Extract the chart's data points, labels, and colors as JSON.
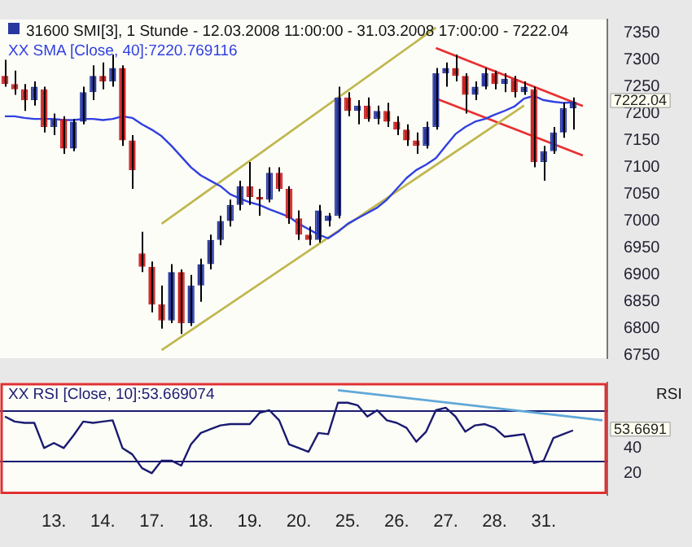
{
  "chart_data": [
    {
      "type": "candlestick",
      "title": "31600  SMI[3], 1 Stunde - 12.03.2008 11:00:00 - 31.03.2008 17:00:00 - 7222.04",
      "categories": [
        null,
        null,
        null,
        null,
        null,
        null,
        null,
        null,
        null,
        null,
        null,
        null,
        null,
        null,
        null,
        null,
        null,
        null,
        null,
        null,
        null,
        null,
        null,
        null,
        null,
        null,
        null,
        null,
        null,
        null,
        null,
        null,
        null,
        null,
        null,
        null,
        null,
        null,
        null,
        null,
        null,
        null,
        null,
        null,
        null,
        null,
        null,
        null,
        null,
        null,
        null,
        null,
        null,
        null,
        null,
        null,
        null,
        null,
        null,
        null,
        null,
        null
      ],
      "ohlc": [
        [
          7270,
          7300,
          7250,
          7255
        ],
        [
          7255,
          7280,
          7235,
          7245
        ],
        [
          7245,
          7255,
          7205,
          7225
        ],
        [
          7225,
          7260,
          7215,
          7250
        ],
        [
          7245,
          7250,
          7165,
          7175
        ],
        [
          7175,
          7200,
          7160,
          7190
        ],
        [
          7190,
          7195,
          7125,
          7135
        ],
        [
          7135,
          7190,
          7130,
          7185
        ],
        [
          7185,
          7250,
          7180,
          7240
        ],
        [
          7240,
          7290,
          7225,
          7270
        ],
        [
          7270,
          7295,
          7245,
          7260
        ],
        [
          7260,
          7310,
          7250,
          7285
        ],
        [
          7285,
          7290,
          7140,
          7150
        ],
        [
          7150,
          7160,
          7060,
          7095
        ],
        [
          6940,
          6980,
          6905,
          6915
        ],
        [
          6915,
          6925,
          6830,
          6845
        ],
        [
          6845,
          6880,
          6800,
          6815
        ],
        [
          6815,
          6920,
          6810,
          6905
        ],
        [
          6905,
          6910,
          6790,
          6810
        ],
        [
          6810,
          6900,
          6805,
          6880
        ],
        [
          6880,
          6930,
          6850,
          6920
        ],
        [
          6920,
          6975,
          6910,
          6965
        ],
        [
          6965,
          7010,
          6955,
          7000
        ],
        [
          7000,
          7040,
          6990,
          7030
        ],
        [
          7030,
          7075,
          7020,
          7065
        ],
        [
          7065,
          7110,
          7030,
          7045
        ],
        [
          7045,
          7060,
          7010,
          7040
        ],
        [
          7040,
          7100,
          7035,
          7090
        ],
        [
          7090,
          7100,
          7055,
          7060
        ],
        [
          7060,
          7065,
          6995,
          7005
        ],
        [
          7005,
          7020,
          6965,
          6975
        ],
        [
          6975,
          6990,
          6955,
          6965
        ],
        [
          6965,
          7030,
          6960,
          7020
        ],
        [
          7000,
          7015,
          6990,
          7010
        ],
        [
          7010,
          7250,
          7005,
          7230
        ],
        [
          7230,
          7240,
          7195,
          7205
        ],
        [
          7205,
          7225,
          7180,
          7215
        ],
        [
          7215,
          7230,
          7185,
          7190
        ],
        [
          7190,
          7215,
          7180,
          7205
        ],
        [
          7205,
          7220,
          7175,
          7185
        ],
        [
          7185,
          7195,
          7160,
          7170
        ],
        [
          7170,
          7180,
          7140,
          7150
        ],
        [
          7150,
          7165,
          7125,
          7140
        ],
        [
          7140,
          7185,
          7135,
          7175
        ],
        [
          7175,
          7285,
          7170,
          7275
        ],
        [
          7275,
          7295,
          7250,
          7285
        ],
        [
          7285,
          7310,
          7260,
          7270
        ],
        [
          7270,
          7275,
          7200,
          7235
        ],
        [
          7235,
          7260,
          7225,
          7250
        ],
        [
          7250,
          7285,
          7245,
          7275
        ],
        [
          7275,
          7280,
          7245,
          7255
        ],
        [
          7255,
          7275,
          7240,
          7265
        ],
        [
          7265,
          7270,
          7230,
          7240
        ],
        [
          7240,
          7260,
          7235,
          7250
        ],
        [
          7245,
          7250,
          7100,
          7110
        ],
        [
          7110,
          7140,
          7075,
          7130
        ],
        [
          7130,
          7175,
          7125,
          7165
        ],
        [
          7165,
          7220,
          7155,
          7210
        ],
        [
          7210,
          7230,
          7170,
          7222.04
        ],
        null,
        null,
        null
      ],
      "colors": [
        "#c82020",
        "#c82020",
        "#c82020",
        "#2838a0",
        "#c82020",
        "#2838a0",
        "#c82020",
        "#2838a0",
        "#2838a0",
        "#2838a0",
        "#c82020",
        "#2838a0",
        "#c82020",
        "#c82020",
        "#c82020",
        "#c82020",
        "#c82020",
        "#2838a0",
        "#c82020",
        "#2838a0",
        "#2838a0",
        "#2838a0",
        "#2838a0",
        "#2838a0",
        "#2838a0",
        "#c82020",
        "#c82020",
        "#2838a0",
        "#c82020",
        "#c82020",
        "#c82020",
        "#c82020",
        "#2838a0",
        "#2838a0",
        "#2838a0",
        "#c82020",
        "#2838a0",
        "#c82020",
        "#2838a0",
        "#c82020",
        "#c82020",
        "#c82020",
        "#c82020",
        "#2838a0",
        "#2838a0",
        "#2838a0",
        "#c82020",
        "#c82020",
        "#2838a0",
        "#2838a0",
        "#c82020",
        "#2838a0",
        "#c82020",
        "#2838a0",
        "#c82020",
        "#2838a0",
        "#2838a0",
        "#2838a0",
        "#2838a0",
        null,
        null,
        null
      ],
      "series": [
        {
          "type": "line",
          "name": "XX SMA [Close, 40]:7220.769116",
          "color": "#3040e0",
          "values": [
            7195,
            7195,
            7192,
            7190,
            7190,
            7190,
            7188,
            7188,
            7190,
            7190,
            7188,
            7190,
            7195,
            7192,
            7180,
            7170,
            7158,
            7140,
            7120,
            7100,
            7085,
            7075,
            7065,
            7050,
            7042,
            7035,
            7030,
            7022,
            7015,
            7008,
            6995,
            6985,
            6975,
            6968,
            6980,
            6995,
            7005,
            7015,
            7025,
            7040,
            7060,
            7080,
            7095,
            7105,
            7117,
            7140,
            7162,
            7175,
            7185,
            7190,
            7198,
            7205,
            7213,
            7228,
            7233,
            7225,
            7222,
            7220,
            7221,
            null,
            null,
            null
          ]
        },
        {
          "type": "line",
          "color": "#c0b850",
          "values": [
            null,
            null,
            null,
            null,
            null,
            null,
            null,
            null,
            null,
            null,
            null,
            null,
            null,
            null,
            null,
            null,
            6995,
            null,
            null,
            null,
            null,
            null,
            null,
            null,
            null,
            null,
            null,
            null,
            null,
            null,
            null,
            null,
            null,
            null,
            null,
            null,
            null,
            null,
            null,
            null,
            null,
            null,
            null,
            null,
            7360,
            null,
            null,
            null,
            null,
            null,
            null,
            null,
            null,
            null,
            null,
            null,
            null,
            null,
            null,
            null,
            null,
            null
          ]
        },
        {
          "type": "line",
          "color": "#c0b850",
          "values": [
            null,
            null,
            null,
            null,
            null,
            null,
            null,
            null,
            null,
            null,
            null,
            null,
            null,
            null,
            null,
            null,
            6760,
            null,
            null,
            null,
            null,
            null,
            null,
            null,
            null,
            null,
            null,
            null,
            null,
            null,
            null,
            null,
            null,
            null,
            null,
            null,
            null,
            null,
            null,
            null,
            null,
            null,
            null,
            null,
            null,
            null,
            null,
            null,
            null,
            null,
            null,
            null,
            null,
            7215,
            null,
            null,
            null,
            null,
            null,
            null,
            null,
            null
          ]
        },
        {
          "type": "line",
          "color": "#e83030",
          "values": [
            null,
            null,
            null,
            null,
            null,
            null,
            null,
            null,
            null,
            null,
            null,
            null,
            null,
            null,
            null,
            null,
            null,
            null,
            null,
            null,
            null,
            null,
            null,
            null,
            null,
            null,
            null,
            null,
            null,
            null,
            null,
            null,
            null,
            null,
            null,
            null,
            null,
            null,
            null,
            null,
            null,
            null,
            null,
            null,
            7322,
            null,
            null,
            null,
            null,
            null,
            null,
            null,
            null,
            null,
            null,
            null,
            null,
            null,
            null,
            7214,
            null,
            null
          ]
        },
        {
          "type": "line",
          "color": "#e83030",
          "values": [
            null,
            null,
            null,
            null,
            null,
            null,
            null,
            null,
            null,
            null,
            null,
            null,
            null,
            null,
            null,
            null,
            null,
            null,
            null,
            null,
            null,
            null,
            null,
            null,
            null,
            null,
            null,
            null,
            null,
            null,
            null,
            null,
            null,
            null,
            null,
            null,
            null,
            null,
            null,
            null,
            null,
            null,
            null,
            null,
            7228,
            null,
            null,
            null,
            null,
            null,
            null,
            null,
            null,
            null,
            null,
            null,
            null,
            null,
            null,
            7122,
            null,
            null
          ]
        }
      ],
      "ylim": [
        6745,
        7375
      ],
      "yticks": [
        6750,
        6800,
        6850,
        6900,
        6950,
        7000,
        7050,
        7100,
        7150,
        7200,
        7250,
        7300,
        7350
      ],
      "tick_labels": "y",
      "annotations": [
        "7222.04"
      ]
    },
    {
      "type": "line",
      "categories": [
        null,
        null,
        null,
        null,
        null,
        "13.",
        null,
        null,
        null,
        null,
        "14.",
        null,
        null,
        null,
        null,
        "17.",
        null,
        null,
        null,
        null,
        "18.",
        null,
        null,
        null,
        null,
        "19.",
        null,
        null,
        null,
        null,
        "20.",
        null,
        null,
        null,
        null,
        "25.",
        null,
        null,
        null,
        null,
        "26.",
        null,
        null,
        null,
        null,
        "27.",
        null,
        null,
        null,
        null,
        "28.",
        null,
        null,
        null,
        null,
        "31.",
        null,
        null,
        null,
        null,
        null,
        null
      ],
      "series": [
        {
          "name": "XX RSI [Close, 10]:53.669074",
          "color": "#1a1a70",
          "values": [
            65,
            61,
            60,
            60,
            40,
            44,
            40,
            50,
            61,
            60,
            61,
            62,
            40,
            35,
            24,
            20,
            30,
            30,
            26,
            43,
            52,
            55,
            58,
            59,
            59,
            59,
            68,
            70,
            62,
            43,
            40,
            37,
            52,
            51,
            76,
            76,
            74,
            65,
            70,
            62,
            60,
            56,
            45,
            53,
            70,
            72,
            65,
            53,
            58,
            59,
            56,
            49,
            50,
            51,
            28,
            30,
            48,
            51,
            54,
            null,
            null,
            null
          ]
        },
        {
          "color": "#60a8d8",
          "values": [
            null,
            null,
            null,
            null,
            null,
            null,
            null,
            null,
            null,
            null,
            null,
            null,
            null,
            null,
            null,
            null,
            null,
            null,
            null,
            null,
            null,
            null,
            null,
            null,
            null,
            null,
            null,
            null,
            null,
            null,
            null,
            null,
            null,
            null,
            86,
            null,
            null,
            null,
            null,
            null,
            null,
            null,
            null,
            null,
            null,
            null,
            null,
            null,
            null,
            null,
            null,
            null,
            null,
            null,
            null,
            null,
            null,
            null,
            null,
            null,
            null,
            62
          ]
        }
      ],
      "ylim": [
        3,
        92
      ],
      "yticks": [
        20,
        40
      ],
      "ylabel": "RSI",
      "ref_lines": [
        {
          "axis": "y",
          "value": 70,
          "color": "#1a1a70"
        },
        {
          "axis": "y",
          "value": 30,
          "color": "#1a1a70"
        }
      ],
      "annotations": [
        "53.6691"
      ]
    }
  ]
}
